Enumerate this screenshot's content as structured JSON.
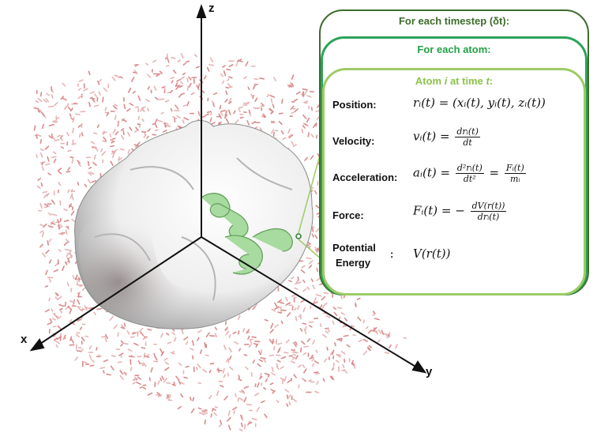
{
  "axes": {
    "z": "z",
    "x": "x",
    "y": "y"
  },
  "panel": {
    "outer_title": "For each timestep (δt):",
    "middle_title": "For each atom:",
    "inner_title_pre": "Atom ",
    "inner_title_i": "i",
    "inner_title_mid": " at time ",
    "inner_title_t": "t",
    "inner_title_post": ":",
    "colors": {
      "outer": "#3e6b2a",
      "middle": "#2ca25a",
      "inner": "#9ccc65",
      "outer_title": "#3e6b2a",
      "middle_title": "#22a048",
      "inner_title": "#8bc34a"
    }
  },
  "rows": {
    "position": {
      "label": "Position:",
      "lhs": "rᵢ(t) = (xᵢ(t), yᵢ(t), zᵢ(t))"
    },
    "velocity": {
      "label": "Velocity:",
      "lhs": "vᵢ(t) =",
      "num": "drᵢ(t)",
      "den": "dt"
    },
    "acceleration": {
      "label": "Acceleration:",
      "lhs": "aᵢ(t) =",
      "num1": "d²rᵢ(t)",
      "den1": "dt²",
      "mid": "=",
      "num2": "Fᵢ(t)",
      "den2": "mᵢ"
    },
    "force": {
      "label": "Force:",
      "lhs": "Fᵢ(t) = −",
      "num": "dV(r(t))",
      "den": "drᵢ(t)"
    },
    "potential": {
      "label_line1": "Potential",
      "label_line2": "Energy",
      "colon": ":",
      "expr": "V(r(t))"
    }
  },
  "scene_colors": {
    "water": "#d98a8a",
    "protein_surface": "#f2f2f2",
    "ribbon": "#a8dba0"
  }
}
